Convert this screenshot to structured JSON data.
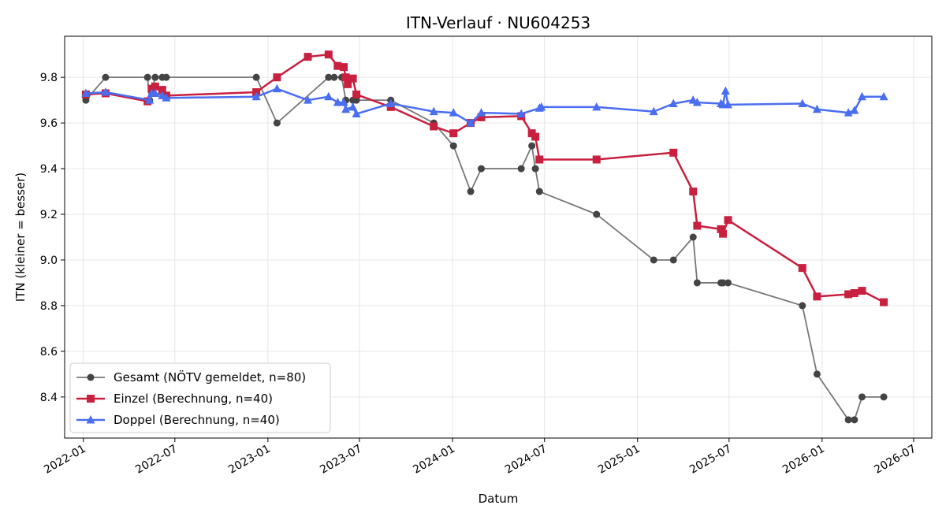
{
  "chart_data": {
    "type": "line",
    "title": "ITN-Verlauf · NU604253",
    "xlabel": "Datum",
    "ylabel": "ITN  (kleiner = besser)",
    "xlim": [
      "2021-11-25",
      "2026-08-06"
    ],
    "ylim": [
      8.22,
      9.98
    ],
    "xticks": [
      "2022-01",
      "2022-07",
      "2023-01",
      "2023-07",
      "2024-01",
      "2024-07",
      "2025-01",
      "2025-07",
      "2026-01",
      "2026-07"
    ],
    "yticks": [
      "8.4",
      "8.6",
      "8.8",
      "9.0",
      "9.2",
      "9.4",
      "9.6",
      "9.8"
    ],
    "grid": true,
    "legend_position": "lower-left",
    "series": [
      {
        "name": "Gesamt (NÖTV gemeldet, n=80)",
        "color": "#444444",
        "marker": "circle",
        "x": [
          "2022-01-06",
          "2022-02-14",
          "2022-05-08",
          "2022-05-12",
          "2022-05-23",
          "2022-06-06",
          "2022-06-14",
          "2022-12-09",
          "2023-01-19",
          "2023-05-01",
          "2023-05-12",
          "2023-05-27",
          "2023-06-04",
          "2023-06-18",
          "2023-06-25",
          "2023-09-01",
          "2023-11-25",
          "2024-01-03",
          "2024-02-06",
          "2024-02-27",
          "2024-05-16",
          "2024-06-06",
          "2024-06-13",
          "2024-06-21",
          "2024-10-12",
          "2025-02-02",
          "2025-03-13",
          "2025-04-21",
          "2025-04-29",
          "2025-06-15",
          "2025-06-19",
          "2025-06-29",
          "2025-11-23",
          "2025-12-22",
          "2026-02-22",
          "2026-03-06",
          "2026-03-21",
          "2026-05-03"
        ],
        "y": [
          9.7,
          9.8,
          9.8,
          9.7,
          9.8,
          9.8,
          9.8,
          9.8,
          9.6,
          9.8,
          9.8,
          9.8,
          9.7,
          9.7,
          9.7,
          9.7,
          9.6,
          9.5,
          9.3,
          9.4,
          9.4,
          9.5,
          9.4,
          9.3,
          9.2,
          9.0,
          9.0,
          9.1,
          8.9,
          8.9,
          8.9,
          8.9,
          8.8,
          8.5,
          8.3,
          8.3,
          8.4,
          8.4
        ]
      },
      {
        "name": "Einzel (Berechnung, n=40)",
        "color": "#c8203f",
        "marker": "square",
        "x": [
          "2022-01-06",
          "2022-02-14",
          "2022-05-08",
          "2022-05-16",
          "2022-05-23",
          "2022-06-06",
          "2022-06-14",
          "2022-12-09",
          "2023-01-19",
          "2023-03-21",
          "2023-05-01",
          "2023-05-19",
          "2023-05-31",
          "2023-06-04",
          "2023-06-08",
          "2023-06-18",
          "2023-06-25",
          "2023-09-01",
          "2023-11-25",
          "2024-01-03",
          "2024-02-06",
          "2024-02-27",
          "2024-05-16",
          "2024-06-06",
          "2024-06-13",
          "2024-06-21",
          "2024-10-12",
          "2025-03-13",
          "2025-04-21",
          "2025-04-29",
          "2025-06-15",
          "2025-06-19",
          "2025-06-29",
          "2025-11-23",
          "2025-12-22",
          "2026-02-22",
          "2026-03-06",
          "2026-03-21",
          "2026-05-03"
        ],
        "y": [
          9.725,
          9.73,
          9.695,
          9.75,
          9.76,
          9.745,
          9.72,
          9.735,
          9.8,
          9.89,
          9.9,
          9.85,
          9.845,
          9.8,
          9.77,
          9.795,
          9.725,
          9.67,
          9.585,
          9.555,
          9.6,
          9.625,
          9.63,
          9.555,
          9.54,
          9.44,
          9.44,
          9.47,
          9.3,
          9.15,
          9.135,
          9.115,
          9.175,
          8.965,
          8.84,
          8.85,
          8.855,
          8.865,
          8.815
        ]
      },
      {
        "name": "Doppel (Berechnung, n=40)",
        "color": "#4a6ef0",
        "marker": "triangle",
        "x": [
          "2022-01-06",
          "2022-02-14",
          "2022-05-12",
          "2022-05-16",
          "2022-05-23",
          "2022-06-06",
          "2022-06-14",
          "2022-12-09",
          "2023-01-19",
          "2023-03-21",
          "2023-05-01",
          "2023-05-19",
          "2023-05-31",
          "2023-06-04",
          "2023-06-18",
          "2023-06-25",
          "2023-09-01",
          "2023-11-25",
          "2024-01-03",
          "2024-02-06",
          "2024-02-27",
          "2024-05-16",
          "2024-06-21",
          "2024-06-25",
          "2024-10-12",
          "2025-02-02",
          "2025-03-13",
          "2025-04-21",
          "2025-04-29",
          "2025-06-15",
          "2025-06-19",
          "2025-06-24",
          "2025-06-29",
          "2025-11-23",
          "2025-12-22",
          "2026-02-22",
          "2026-03-06",
          "2026-03-21",
          "2026-05-03"
        ],
        "y": [
          9.73,
          9.735,
          9.7,
          9.73,
          9.73,
          9.72,
          9.71,
          9.715,
          9.75,
          9.7,
          9.715,
          9.69,
          9.69,
          9.66,
          9.67,
          9.64,
          9.685,
          9.65,
          9.645,
          9.6,
          9.645,
          9.64,
          9.665,
          9.67,
          9.67,
          9.65,
          9.685,
          9.7,
          9.69,
          9.685,
          9.68,
          9.74,
          9.68,
          9.685,
          9.66,
          9.645,
          9.655,
          9.715,
          9.715
        ]
      }
    ]
  }
}
